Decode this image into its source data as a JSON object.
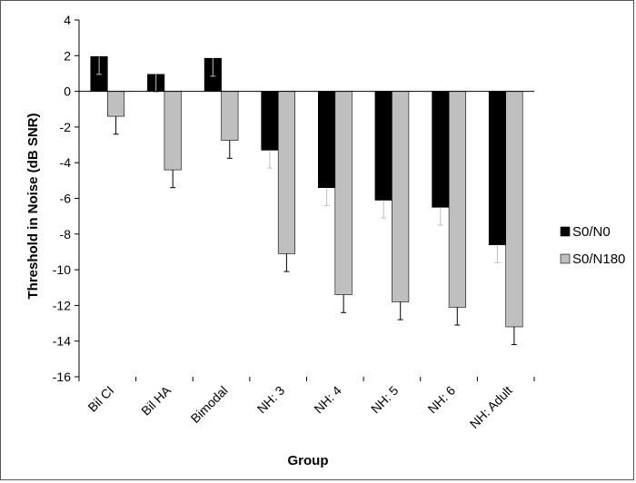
{
  "chart_data": {
    "type": "bar",
    "xlabel": "Group",
    "ylabel": "Threshold in Noise (dB SNR)",
    "ylim": [
      -16,
      4
    ],
    "yticks": [
      4,
      2,
      0,
      -2,
      -4,
      -6,
      -8,
      -10,
      -12,
      -14,
      -16
    ],
    "categories": [
      "Bil CI",
      "Bil HA",
      "Bimodal",
      "NH: 3",
      "NH: 4",
      "NH: 5",
      "NH: 6",
      "NH: Adult"
    ],
    "series": [
      {
        "name": "S0/N0",
        "color": "#000000",
        "values": [
          1.95,
          0.95,
          1.85,
          -3.3,
          -5.4,
          -6.1,
          -6.5,
          -8.6
        ],
        "error": [
          1.0,
          1.0,
          1.0,
          1.0,
          1.0,
          1.0,
          1.0,
          1.0
        ]
      },
      {
        "name": "S0/N180",
        "color": "#bfbfbf",
        "values": [
          -1.4,
          -4.4,
          -2.75,
          -9.1,
          -11.4,
          -11.8,
          -12.1,
          -13.2
        ],
        "error": [
          1.0,
          1.0,
          1.0,
          1.0,
          1.0,
          1.0,
          1.0,
          1.0
        ]
      }
    ],
    "legend_position": "right",
    "grid": false
  }
}
